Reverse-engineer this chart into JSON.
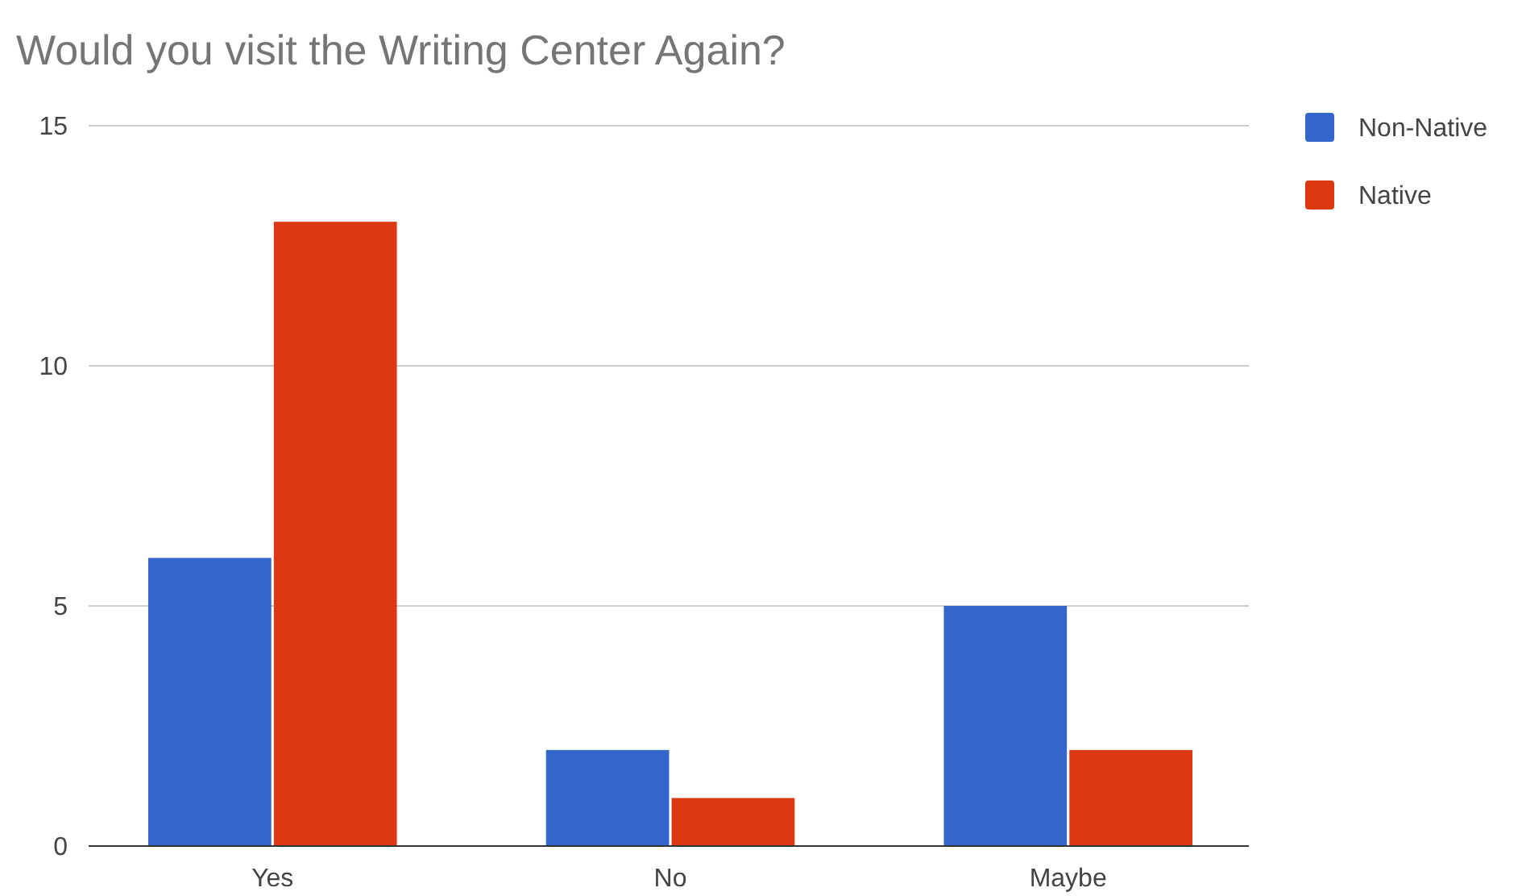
{
  "chart_data": {
    "type": "bar",
    "title": "Would you visit the Writing Center Again?",
    "categories": [
      "Yes",
      "No",
      "Maybe"
    ],
    "series": [
      {
        "name": "Non-Native",
        "color": "#3366cc",
        "values": [
          6,
          2,
          5
        ]
      },
      {
        "name": "Native",
        "color": "#dc3912",
        "values": [
          13,
          1,
          2
        ]
      }
    ],
    "ylim": [
      0,
      15
    ],
    "yticks": [
      0,
      5,
      10,
      15
    ],
    "grid": "y",
    "legend": "right"
  }
}
